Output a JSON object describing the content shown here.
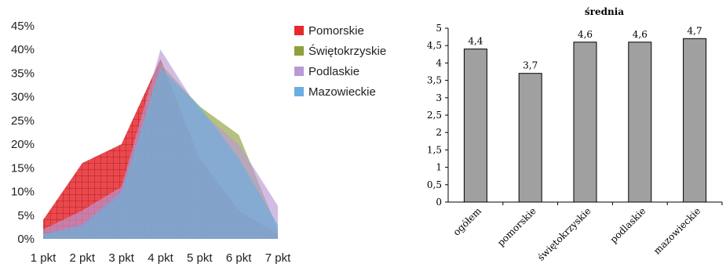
{
  "chart_data": [
    {
      "type": "area",
      "title": "",
      "xlabel": "",
      "ylabel": "",
      "categories": [
        "1 pkt",
        "2 pkt",
        "3 pkt",
        "4 pkt",
        "5 pkt",
        "6 pkt",
        "7 pkt"
      ],
      "y_ticks": [
        "0%",
        "5%",
        "10%",
        "15%",
        "20%",
        "25%",
        "30%",
        "35%",
        "40%",
        "45%"
      ],
      "ylim": [
        0,
        45
      ],
      "grid": false,
      "legend_position": "right",
      "series": [
        {
          "name": "Pomorskie",
          "color": "#e8282e",
          "values": [
            4,
            16,
            20,
            38,
            17,
            6,
            1
          ]
        },
        {
          "name": "Świętokrzyskie",
          "color": "#8ea03a",
          "values": [
            1,
            2,
            9,
            37,
            28,
            22,
            2
          ]
        },
        {
          "name": "Podlaskie",
          "color": "#b89ad6",
          "values": [
            2,
            6,
            11,
            40,
            27,
            20,
            7
          ]
        },
        {
          "name": "Mazowieckie",
          "color": "#6aaee2",
          "values": [
            1,
            3,
            10,
            36,
            28,
            17,
            3
          ]
        }
      ]
    },
    {
      "type": "bar",
      "title": "średnia",
      "xlabel": "",
      "ylabel": "",
      "categories": [
        "ogółem",
        "pomorskie",
        "świętokrzyskie",
        "podlaskie",
        "mazowieckie"
      ],
      "values": [
        4.4,
        3.7,
        4.6,
        4.6,
        4.7
      ],
      "data_labels": [
        "4,4",
        "3,7",
        "4,6",
        "4,6",
        "4,7"
      ],
      "y_ticks": [
        "0",
        "0,5",
        "1",
        "1,5",
        "2",
        "2,5",
        "3",
        "3,5",
        "4",
        "4,5",
        "5"
      ],
      "ylim": [
        0,
        5
      ],
      "grid": false,
      "bar_color": "#a0a0a0"
    }
  ]
}
